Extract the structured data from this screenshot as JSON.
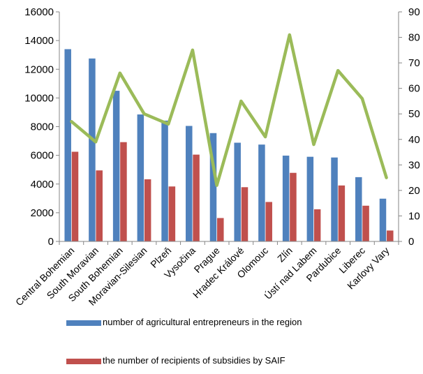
{
  "chart_data": {
    "type": "bar",
    "categories": [
      "Central Bohemian",
      "South Moravian",
      "South Bohemian",
      "Moravian-Silesian",
      "Plzeň",
      "Vysočina",
      "Prague",
      "Hradec Králové",
      "Olomouc",
      "Zlín",
      "Ústí nad Labem",
      "Pardubice",
      "Liberec",
      "Karlovy Vary"
    ],
    "series": [
      {
        "name": "number of agricultural entrepreneurs in the region",
        "type": "bar",
        "axis": "left",
        "color": "#4F81BD",
        "values": [
          13400,
          12750,
          10500,
          8850,
          8420,
          8050,
          7550,
          6880,
          6750,
          5980,
          5900,
          5850,
          4480,
          2980
        ]
      },
      {
        "name": "the number of recipients of subsidies by SAIF",
        "type": "bar",
        "axis": "left",
        "color": "#C0504D",
        "values": [
          6250,
          4950,
          6920,
          4330,
          3830,
          6050,
          1630,
          3780,
          2750,
          4780,
          2240,
          3900,
          2490,
          760
        ]
      },
      {
        "name": "",
        "type": "line",
        "axis": "right",
        "color": "#9BBB59",
        "values": [
          47,
          39,
          66,
          50,
          46,
          75,
          22,
          55,
          41,
          81,
          38,
          67,
          56,
          25
        ]
      }
    ],
    "ylim": [
      0,
      16000
    ],
    "yticks": [
      0,
      2000,
      4000,
      6000,
      8000,
      10000,
      12000,
      14000,
      16000
    ],
    "y2lim": [
      0,
      90
    ],
    "y2ticks": [
      0,
      10,
      20,
      30,
      40,
      50,
      60,
      70,
      80,
      90
    ],
    "grid": false,
    "legend_position": "bottom",
    "title": "",
    "xlabel": "",
    "ylabel": "",
    "y2label": ""
  }
}
